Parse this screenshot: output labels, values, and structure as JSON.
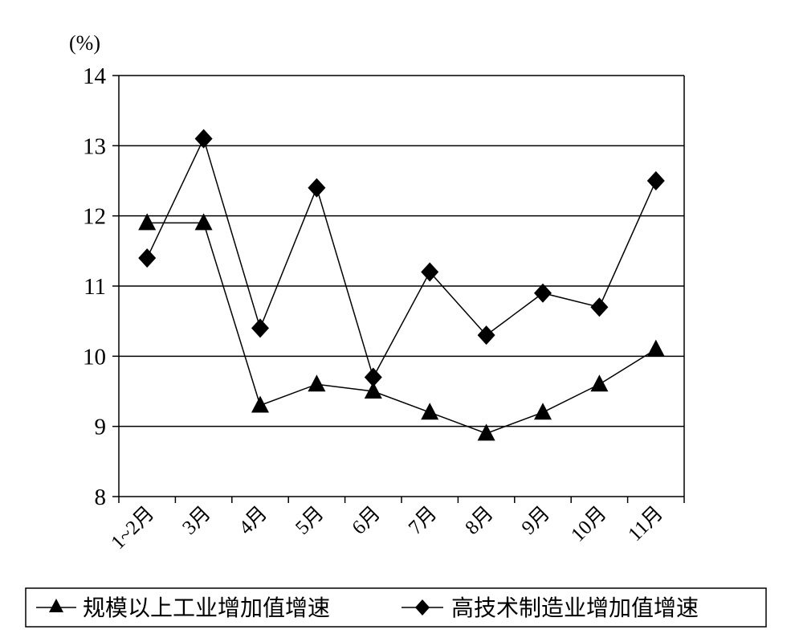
{
  "chart_data": {
    "type": "line",
    "unit_label": "(%)",
    "categories": [
      "1~2月",
      "3月",
      "4月",
      "5月",
      "6月",
      "7月",
      "8月",
      "9月",
      "10月",
      "11月"
    ],
    "ylim": [
      8,
      14
    ],
    "yticks": [
      "8",
      "9",
      "10",
      "11",
      "12",
      "13",
      "14"
    ],
    "grid": true,
    "legend_position": "bottom",
    "series": [
      {
        "name": "规模以上工业增加值增速",
        "marker": "triangle",
        "values": [
          11.9,
          11.9,
          9.3,
          9.6,
          9.5,
          9.2,
          8.9,
          9.2,
          9.6,
          10.1
        ]
      },
      {
        "name": "高技术制造业增加值增速",
        "marker": "diamond",
        "values": [
          11.4,
          13.1,
          10.4,
          12.4,
          9.7,
          11.2,
          10.3,
          10.9,
          10.7,
          12.5
        ]
      }
    ],
    "line_color": "#000000"
  }
}
